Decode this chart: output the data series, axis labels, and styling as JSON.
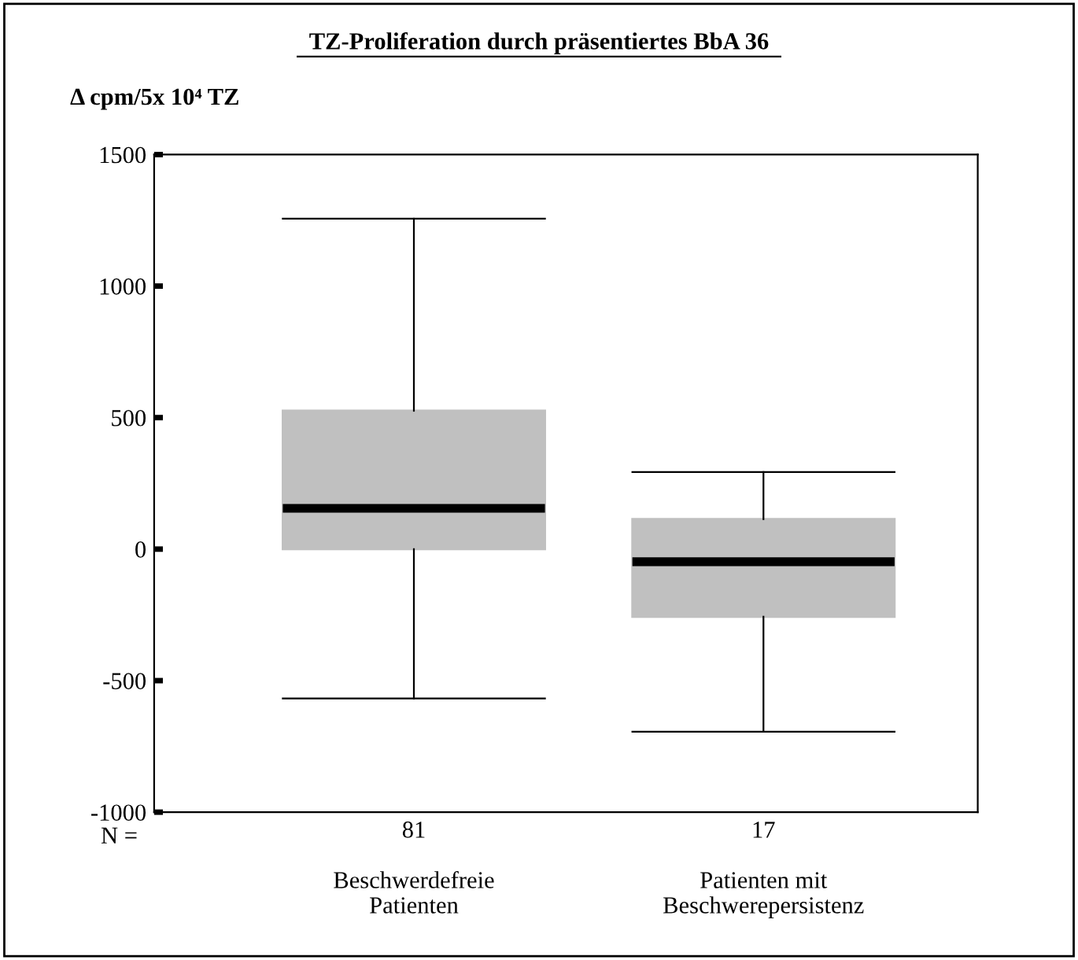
{
  "chart_data": {
    "type": "box",
    "title": "TZ-Proliferation durch präsentiertes BbA 36",
    "ylabel": "Δ cpm/5x 10⁴ TZ",
    "categories": [
      "Beschwerdefreie\nPatienten",
      "Patienten mit\nBeschwerepersistenz"
    ],
    "boxes": [
      {
        "low": -568,
        "q1": 0,
        "median": 155,
        "q3": 526,
        "high": 1256
      },
      {
        "low": -694,
        "q1": -257,
        "median": -48,
        "q3": 114,
        "high": 293
      }
    ],
    "color": "#c0c0c0",
    "ylim": [
      -1000,
      1500
    ],
    "yticks": [
      -1000,
      -500,
      0,
      500,
      1000,
      1500
    ],
    "annotations": [
      "N =",
      "81",
      "17"
    ],
    "grid": false
  }
}
